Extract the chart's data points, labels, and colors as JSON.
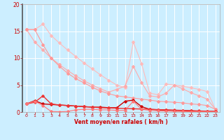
{
  "background_color": "#cceeff",
  "grid_color": "#ffffff",
  "xlabel": "Vent moyen/en rafales ( km/h )",
  "xlabel_color": "#cc0000",
  "tick_color": "#cc0000",
  "xlim": [
    -0.5,
    23.5
  ],
  "ylim": [
    0,
    20
  ],
  "yticks": [
    0,
    5,
    10,
    15,
    20
  ],
  "xticks": [
    0,
    1,
    2,
    3,
    4,
    5,
    6,
    7,
    8,
    9,
    10,
    11,
    12,
    13,
    14,
    15,
    16,
    17,
    18,
    19,
    20,
    21,
    22,
    23
  ],
  "lines": [
    {
      "x": [
        0,
        1,
        2,
        3,
        4,
        5,
        6,
        7,
        8,
        9,
        10,
        11,
        12,
        13,
        14,
        15,
        16,
        17,
        18,
        19,
        20,
        21,
        22,
        23
      ],
      "y": [
        15.3,
        15.3,
        16.3,
        14.2,
        12.8,
        11.5,
        10.3,
        9.1,
        8.0,
        6.9,
        5.9,
        5.0,
        4.5,
        13.0,
        9.0,
        3.5,
        3.2,
        5.2,
        5.0,
        4.8,
        4.5,
        4.2,
        3.8,
        0.5
      ],
      "color": "#ffbbbb",
      "linewidth": 0.8,
      "marker": "D",
      "markersize": 2.0
    },
    {
      "x": [
        0,
        1,
        2,
        3,
        4,
        5,
        6,
        7,
        8,
        9,
        10,
        11,
        12,
        13,
        14,
        15,
        16,
        17,
        18,
        19,
        20,
        21,
        22,
        23
      ],
      "y": [
        15.3,
        13.0,
        11.5,
        10.0,
        8.8,
        7.7,
        6.7,
        5.8,
        5.0,
        4.3,
        3.7,
        4.2,
        4.8,
        8.5,
        5.5,
        3.0,
        2.8,
        3.5,
        5.0,
        4.3,
        3.6,
        3.0,
        2.4,
        0.5
      ],
      "color": "#ffaaaa",
      "linewidth": 0.8,
      "marker": "D",
      "markersize": 2.0
    },
    {
      "x": [
        0,
        1,
        2,
        3,
        4,
        5,
        6,
        7,
        8,
        9,
        10,
        11,
        12,
        13,
        14,
        15,
        16,
        17,
        18,
        19,
        20,
        21,
        22,
        23
      ],
      "y": [
        15.3,
        15.3,
        12.5,
        10.0,
        8.5,
        7.2,
        6.2,
        5.4,
        4.6,
        3.9,
        3.4,
        3.0,
        2.8,
        2.6,
        2.4,
        2.2,
        2.0,
        1.9,
        1.8,
        1.7,
        1.5,
        1.4,
        1.2,
        0.5
      ],
      "color": "#ff9999",
      "linewidth": 0.8,
      "marker": "D",
      "markersize": 2.0
    },
    {
      "x": [
        0,
        1,
        2,
        3,
        4,
        5,
        6,
        7,
        8,
        9,
        10,
        11,
        12,
        13,
        14,
        15,
        16,
        17,
        18,
        19,
        20,
        21,
        22,
        23
      ],
      "y": [
        1.5,
        2.1,
        1.5,
        1.4,
        1.3,
        1.2,
        1.1,
        1.0,
        0.9,
        0.9,
        0.8,
        0.8,
        2.0,
        2.2,
        1.0,
        0.5,
        0.4,
        0.35,
        0.3,
        0.25,
        0.2,
        0.15,
        0.1,
        0.1
      ],
      "color": "#cc0000",
      "linewidth": 1.0,
      "marker": "D",
      "markersize": 1.8
    },
    {
      "x": [
        0,
        1,
        2,
        3,
        4,
        5,
        6,
        7,
        8,
        9,
        10,
        11,
        12,
        13,
        14,
        15,
        16,
        17,
        18,
        19,
        20,
        21,
        22,
        23
      ],
      "y": [
        1.5,
        1.8,
        3.0,
        1.5,
        1.3,
        1.2,
        1.1,
        1.0,
        0.9,
        0.8,
        0.75,
        0.7,
        0.65,
        0.6,
        0.55,
        0.5,
        0.45,
        0.4,
        0.35,
        0.3,
        0.25,
        0.2,
        0.15,
        0.1
      ],
      "color": "#ee3333",
      "linewidth": 1.0,
      "marker": "D",
      "markersize": 1.8
    },
    {
      "x": [
        0,
        1,
        2,
        3,
        4,
        5,
        6,
        7,
        8,
        9,
        10,
        11,
        12,
        13,
        14,
        15,
        16,
        17,
        18,
        19,
        20,
        21,
        22,
        23
      ],
      "y": [
        1.5,
        2.0,
        1.2,
        0.1,
        0.05,
        0.1,
        0.4,
        0.5,
        0.5,
        0.4,
        0.4,
        0.3,
        0.3,
        2.0,
        0.5,
        0.3,
        0.2,
        0.15,
        0.1,
        0.1,
        0.05,
        0.05,
        0.05,
        0.02
      ],
      "color": "#ff7777",
      "linewidth": 0.8,
      "marker": "D",
      "markersize": 1.8
    }
  ]
}
